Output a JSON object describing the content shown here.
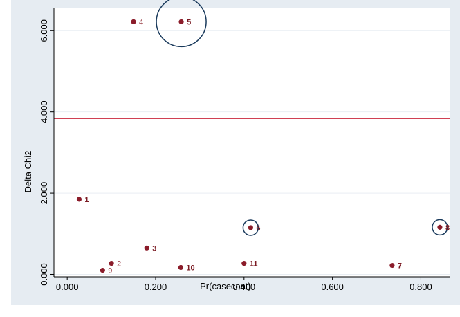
{
  "chart_data": {
    "type": "scatter",
    "xlabel": "Pr(casecont)",
    "ylabel": "Delta Chi2",
    "xlim": [
      -0.03,
      0.865
    ],
    "ylim": [
      -0.06,
      6.55
    ],
    "xticks": [
      0.0,
      0.2,
      0.4,
      0.6,
      0.8
    ],
    "xtick_labels": [
      "0.000",
      "0.200",
      "0.400",
      "0.600",
      "0.800"
    ],
    "yticks": [
      0.0,
      2.0,
      4.0,
      6.0
    ],
    "ytick_labels": [
      "0.000",
      "2.000",
      "4.000",
      "6.000"
    ],
    "reference_line": {
      "y": 3.84,
      "color": "#c0001a"
    },
    "grid": true,
    "points": [
      {
        "label": "1",
        "x": 0.027,
        "y": 1.85,
        "bold": true,
        "label_color": "#7a1a22"
      },
      {
        "label": "2",
        "x": 0.1,
        "y": 0.27,
        "bold": false,
        "label_color": "#9a4048"
      },
      {
        "label": "3",
        "x": 0.18,
        "y": 0.65,
        "bold": true,
        "label_color": "#7a1a22"
      },
      {
        "label": "4",
        "x": 0.15,
        "y": 6.22,
        "bold": false,
        "label_color": "#9a4048"
      },
      {
        "label": "5",
        "x": 0.258,
        "y": 6.22,
        "bold": true,
        "label_color": "#7a1a22",
        "circled": true
      },
      {
        "label": "6",
        "x": 0.415,
        "y": 1.15,
        "bold": true,
        "label_color": "#7a1a22",
        "circled": true
      },
      {
        "label": "7",
        "x": 0.735,
        "y": 0.22,
        "bold": true,
        "label_color": "#7a1a22"
      },
      {
        "label": "8",
        "x": 0.843,
        "y": 1.16,
        "bold": true,
        "label_color": "#7a1a22",
        "circled": true
      },
      {
        "label": "9",
        "x": 0.08,
        "y": 0.1,
        "bold": false,
        "label_color": "#9a4048"
      },
      {
        "label": "10",
        "x": 0.257,
        "y": 0.17,
        "bold": true,
        "label_color": "#7a1a22"
      },
      {
        "label": "11",
        "x": 0.4,
        "y": 0.27,
        "bold": true,
        "label_color": "#7a1a22"
      }
    ],
    "colors": {
      "outer_background": "#e6ecf2",
      "plot_background": "#ffffff",
      "grid": "#e9eef3",
      "marker": "#8b1c2a",
      "highlight_ring": "#1a3a5c"
    }
  }
}
